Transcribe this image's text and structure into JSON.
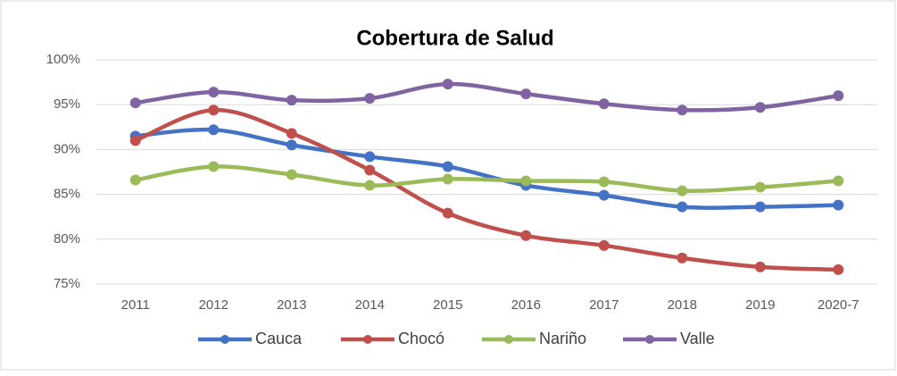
{
  "chart_data": {
    "type": "line",
    "title": "Cobertura de Salud",
    "categories": [
      "2011",
      "2012",
      "2013",
      "2014",
      "2015",
      "2016",
      "2017",
      "2018",
      "2019",
      "2020-7"
    ],
    "series": [
      {
        "name": "Cauca",
        "color": "#4472c4",
        "values": [
          91.5,
          92.2,
          90.5,
          89.2,
          88.1,
          86.0,
          84.9,
          83.6,
          83.6,
          83.8
        ]
      },
      {
        "name": "Chocó",
        "color": "#c0504d",
        "values": [
          91.0,
          94.4,
          91.8,
          87.7,
          82.9,
          80.4,
          79.3,
          77.9,
          76.9,
          76.6
        ]
      },
      {
        "name": "Nariño",
        "color": "#9bbb59",
        "values": [
          86.6,
          88.1,
          87.2,
          86.0,
          86.7,
          86.5,
          86.4,
          85.4,
          85.8,
          86.5
        ]
      },
      {
        "name": "Valle",
        "color": "#8064a2",
        "values": [
          95.2,
          96.4,
          95.5,
          95.7,
          97.3,
          96.2,
          95.1,
          94.4,
          94.7,
          96.0
        ]
      }
    ],
    "ylim": [
      75,
      100
    ],
    "yticks": [
      {
        "value": 75,
        "label": "75%"
      },
      {
        "value": 80,
        "label": "80%"
      },
      {
        "value": 85,
        "label": "85%"
      },
      {
        "value": 90,
        "label": "90%"
      },
      {
        "value": 95,
        "label": "95%"
      },
      {
        "value": 100,
        "label": "100%"
      }
    ],
    "grid": true,
    "legend": "bottom"
  }
}
